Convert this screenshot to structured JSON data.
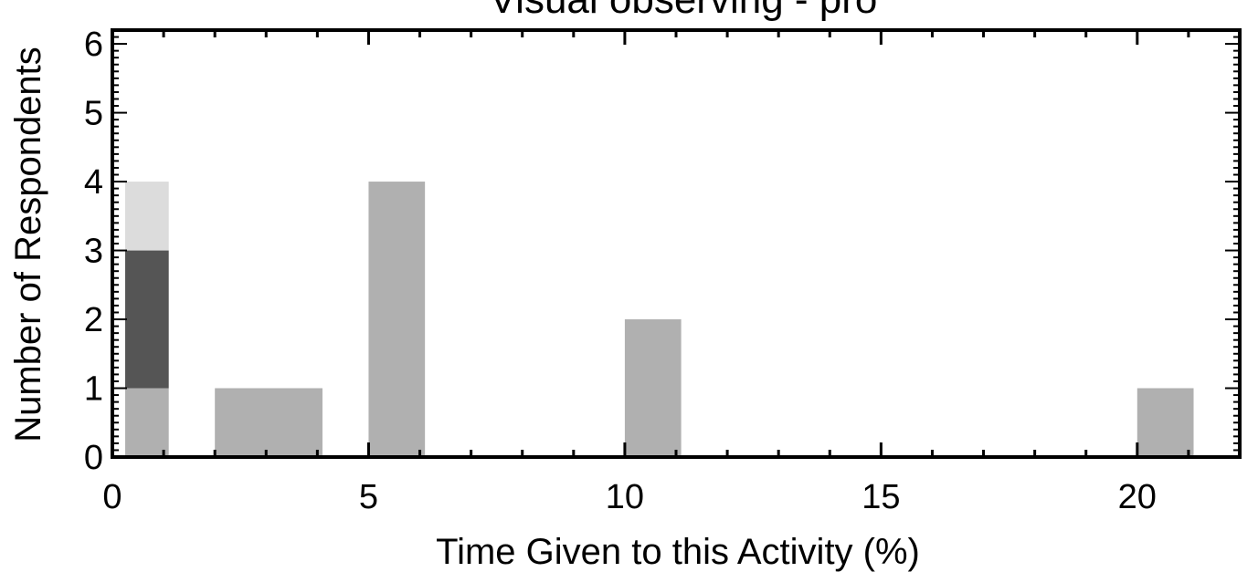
{
  "chart_data": {
    "type": "bar",
    "title": "Visual observing - pro",
    "xlabel": "Time Given to this Activity (%)",
    "ylabel": "Number of Respondents",
    "xlim": [
      0,
      22
    ],
    "ylim": [
      0,
      6.2
    ],
    "x_ticks": [
      0,
      5,
      10,
      15,
      20
    ],
    "y_ticks": [
      0,
      1,
      2,
      3,
      4,
      5,
      6
    ],
    "grid": false,
    "legend": "none",
    "bars": [
      {
        "x0": 0.25,
        "x1": 1.1,
        "y0": 0,
        "y1": 1,
        "color": "#b0b0b0"
      },
      {
        "x0": 0.25,
        "x1": 1.1,
        "y0": 1,
        "y1": 3,
        "color": "#555555"
      },
      {
        "x0": 0.25,
        "x1": 1.1,
        "y0": 3,
        "y1": 4,
        "color": "#dcdcdc"
      },
      {
        "x0": 2,
        "x1": 4.1,
        "y0": 0,
        "y1": 1,
        "color": "#b0b0b0"
      },
      {
        "x0": 5,
        "x1": 6.1,
        "y0": 0,
        "y1": 4,
        "color": "#b0b0b0"
      },
      {
        "x0": 10,
        "x1": 11.1,
        "y0": 0,
        "y1": 2,
        "color": "#b0b0b0"
      },
      {
        "x0": 20,
        "x1": 21.1,
        "y0": 0,
        "y1": 1,
        "color": "#b0b0b0"
      }
    ]
  }
}
